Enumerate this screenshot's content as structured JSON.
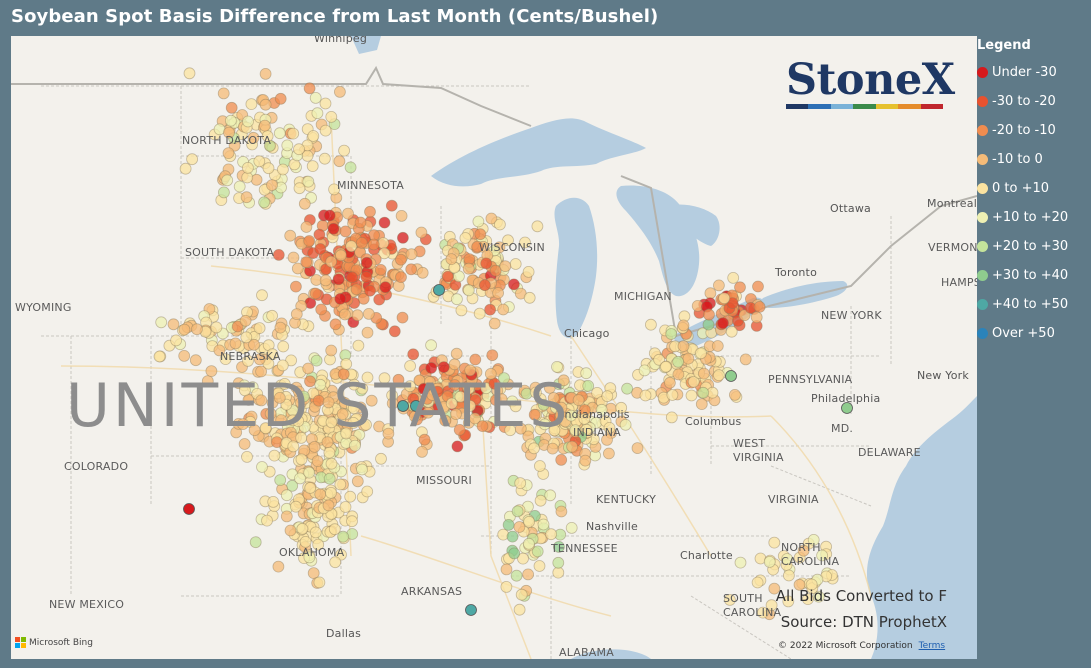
{
  "title": "Soybean Spot Basis Difference from Last Month (Cents/Bushel)",
  "legend": {
    "title": "Legend",
    "items": [
      {
        "label": "Under -30",
        "color": "#d7191c"
      },
      {
        "label": "-30 to -20",
        "color": "#e8522f"
      },
      {
        "label": "-20 to -10",
        "color": "#f08c4f"
      },
      {
        "label": "-10 to 0",
        "color": "#f5bb78"
      },
      {
        "label": "0 to +10",
        "color": "#fbe3a0"
      },
      {
        "label": "+10 to +20",
        "color": "#eef0b3"
      },
      {
        "label": "+20 to +30",
        "color": "#c4e39b"
      },
      {
        "label": "+30 to +40",
        "color": "#8fcc8e"
      },
      {
        "label": "+40 to +50",
        "color": "#4ea8a4"
      },
      {
        "label": "Over +50",
        "color": "#2b83ba"
      }
    ]
  },
  "brand": {
    "name": "StoneX",
    "tm": "™",
    "bar_colors": [
      "#1f3864",
      "#2d6fb5",
      "#7ab2d8",
      "#3a8a4a",
      "#e6c12e",
      "#e58c2a",
      "#c0262d"
    ]
  },
  "map": {
    "country_label": "UNITED STATES",
    "states": [
      "NORTH DAKOTA",
      "MINNESOTA",
      "SOUTH DAKOTA",
      "WISCONSIN",
      "WYOMING",
      "NEBRASKA",
      "COLORADO",
      "MISSOURI",
      "KENTUCKY",
      "WEST VIRGINIA",
      "VIRGINIA",
      "TENNESSEE",
      "NORTH CAROLINA",
      "SOUTH CAROLINA",
      "ARKANSAS",
      "NEW MEXICO",
      "OKLAHOMA",
      "NEW YORK",
      "PENNSYLVANIA",
      "ALABAMA",
      "MICHIGAN",
      "INDIANA",
      "VERMONT",
      "HAMPSHIRE",
      "MD.",
      "DELAWARE"
    ],
    "cities": [
      "Winnipeg",
      "Ottawa",
      "Montreal",
      "Toronto",
      "Chicago",
      "Columbus",
      "Philadelphia",
      "New York",
      "Nashville",
      "Charlotte",
      "Dallas",
      "Indianapolis"
    ],
    "note_line1": "All Bids Converted to F",
    "note_line2": "Source: DTN ProphetX",
    "bing_label": "Microsoft Bing",
    "copyright": "© 2022 Microsoft Corporation",
    "terms": "Terms"
  }
}
